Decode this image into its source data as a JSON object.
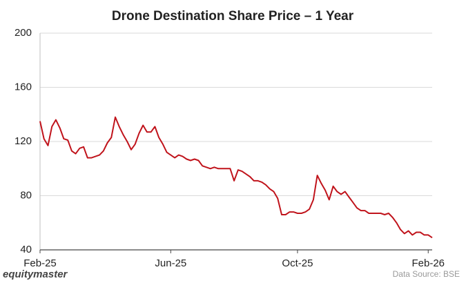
{
  "chart_data": {
    "type": "line",
    "title": "Drone Destination Share Price – 1 Year",
    "brand": "equitymaster",
    "source": "Data Source: BSE",
    "color": "#c0131b",
    "grid": true,
    "ylim": [
      40,
      200
    ],
    "yticks": [
      40,
      80,
      120,
      160,
      200
    ],
    "categories": [
      "Feb-25",
      null,
      null,
      null,
      null,
      null,
      null,
      null,
      null,
      null,
      null,
      null,
      null,
      null,
      null,
      null,
      null,
      null,
      null,
      null,
      null,
      null,
      null,
      null,
      null,
      null,
      null,
      null,
      null,
      null,
      null,
      null,
      null,
      "Jun-25",
      null,
      null,
      null,
      null,
      null,
      null,
      null,
      null,
      null,
      null,
      null,
      null,
      null,
      null,
      null,
      null,
      null,
      null,
      null,
      null,
      null,
      null,
      null,
      null,
      null,
      null,
      null,
      null,
      null,
      null,
      null,
      "Oct-25",
      null,
      null,
      null,
      null,
      null,
      null,
      null,
      null,
      null,
      null,
      null,
      null,
      null,
      null,
      null,
      null,
      null,
      null,
      null,
      null,
      null,
      null,
      null,
      null,
      null,
      null,
      null,
      null,
      null,
      null,
      null,
      null,
      "Feb-26",
      null
    ],
    "values": [
      135,
      122,
      117,
      131,
      136,
      130,
      122,
      121,
      113,
      111,
      115,
      116,
      108,
      108,
      109,
      110,
      113,
      119,
      123,
      138,
      131,
      125,
      120,
      114,
      118,
      126,
      132,
      127,
      127,
      131,
      123,
      118,
      112,
      110,
      108,
      110,
      109,
      107,
      106,
      107,
      106,
      102,
      101,
      100,
      101,
      100,
      100,
      100,
      100,
      91,
      99,
      98,
      96,
      94,
      91,
      91,
      90,
      88,
      85,
      83,
      78,
      66,
      66,
      68,
      68,
      67,
      67,
      68,
      70,
      77,
      95,
      89,
      84,
      77,
      87,
      83,
      81,
      83,
      79,
      75,
      71,
      69,
      69,
      67,
      67,
      67,
      67,
      66,
      67,
      64,
      60,
      55,
      52,
      54,
      51,
      53,
      53,
      51,
      51,
      49
    ]
  }
}
